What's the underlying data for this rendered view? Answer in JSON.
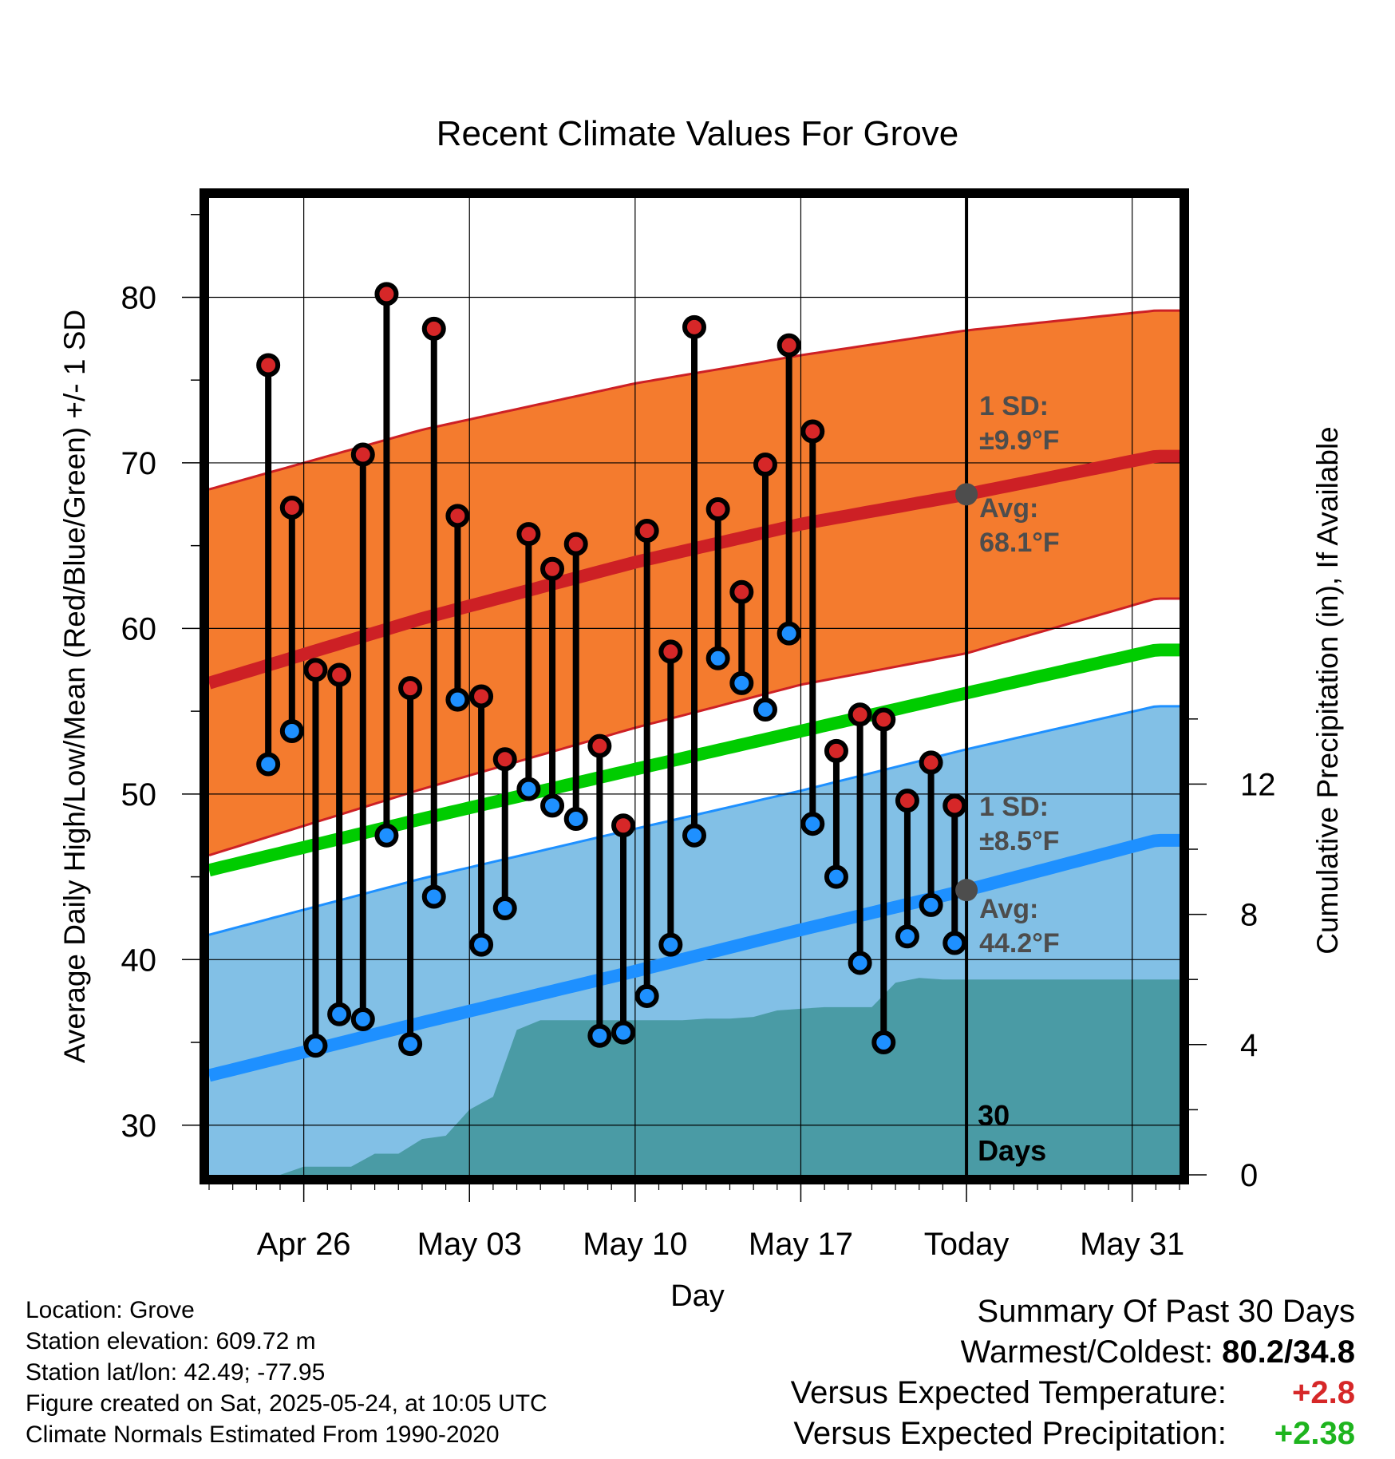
{
  "chart_data": {
    "type": "line",
    "title": "Recent Climate Values For Grove",
    "xlabel": "Day",
    "ylabel": "Average Daily High/Low/Mean (Red/Blue/Green) +/- 1 SD",
    "y2label": "Cumulative Precipitation (in), If Available",
    "ylim": [
      27,
      86
    ],
    "y2lim": [
      0,
      30
    ],
    "xlim": [
      "2025-04-22",
      "2025-06-02"
    ],
    "yticks": [
      30,
      40,
      50,
      60,
      70,
      80
    ],
    "y2ticks": [
      0,
      4,
      8,
      12
    ],
    "xticks": [
      {
        "date": "2025-04-26",
        "label": "Apr 26"
      },
      {
        "date": "2025-05-03",
        "label": "May 03"
      },
      {
        "date": "2025-05-10",
        "label": "May 10"
      },
      {
        "date": "2025-05-17",
        "label": "May 17"
      },
      {
        "date": "2025-05-24",
        "label": "Today"
      },
      {
        "date": "2025-05-31",
        "label": "May 31"
      }
    ],
    "today": "2025-05-24",
    "today_label": [
      "30",
      "Days"
    ],
    "grid": true,
    "normals": {
      "dates": [
        "2025-04-22",
        "2025-05-01",
        "2025-05-10",
        "2025-05-17",
        "2025-05-24",
        "2025-06-01"
      ],
      "high_avg": [
        56.7,
        60.6,
        64.0,
        66.3,
        68.1,
        70.4
      ],
      "high_sd_upper": [
        68.4,
        72.0,
        74.8,
        76.5,
        78.0,
        79.2
      ],
      "high_sd_lower": [
        46.3,
        50.3,
        54.0,
        56.6,
        58.5,
        61.8
      ],
      "mean_avg": [
        45.4,
        48.5,
        51.5,
        53.8,
        56.1,
        58.7
      ],
      "low_avg": [
        33.0,
        36.2,
        39.3,
        41.8,
        44.2,
        47.2
      ],
      "low_sd_upper": [
        41.5,
        44.9,
        47.9,
        50.2,
        52.7,
        55.3
      ],
      "low_sd_lower": [
        27,
        27,
        27,
        27,
        27,
        27
      ]
    },
    "series": [
      {
        "name": "High",
        "color": "#d62728",
        "x": [
          "2025-04-24",
          "2025-04-25",
          "2025-04-26",
          "2025-04-27",
          "2025-04-28",
          "2025-04-29",
          "2025-04-30",
          "2025-05-01",
          "2025-05-02",
          "2025-05-03",
          "2025-05-04",
          "2025-05-05",
          "2025-05-06",
          "2025-05-07",
          "2025-05-08",
          "2025-05-09",
          "2025-05-10",
          "2025-05-11",
          "2025-05-12",
          "2025-05-13",
          "2025-05-14",
          "2025-05-15",
          "2025-05-16",
          "2025-05-17",
          "2025-05-18",
          "2025-05-19",
          "2025-05-20",
          "2025-05-21",
          "2025-05-22",
          "2025-05-23"
        ],
        "values": [
          75.9,
          67.3,
          57.5,
          57.2,
          70.5,
          80.2,
          56.4,
          78.1,
          66.8,
          55.9,
          52.1,
          65.7,
          63.6,
          65.1,
          52.9,
          48.1,
          65.9,
          58.6,
          78.2,
          67.2,
          62.2,
          69.9,
          77.1,
          71.9,
          52.6,
          54.8,
          54.5,
          49.6,
          51.9,
          49.3
        ]
      },
      {
        "name": "Low",
        "color": "#1e90ff",
        "x": [
          "2025-04-24",
          "2025-04-25",
          "2025-04-26",
          "2025-04-27",
          "2025-04-28",
          "2025-04-29",
          "2025-04-30",
          "2025-05-01",
          "2025-05-02",
          "2025-05-03",
          "2025-05-04",
          "2025-05-05",
          "2025-05-06",
          "2025-05-07",
          "2025-05-08",
          "2025-05-09",
          "2025-05-10",
          "2025-05-11",
          "2025-05-12",
          "2025-05-13",
          "2025-05-14",
          "2025-05-15",
          "2025-05-16",
          "2025-05-17",
          "2025-05-18",
          "2025-05-19",
          "2025-05-20",
          "2025-05-21",
          "2025-05-22",
          "2025-05-23"
        ],
        "values": [
          51.8,
          53.8,
          34.8,
          36.7,
          36.4,
          47.5,
          34.9,
          43.8,
          55.7,
          40.9,
          43.1,
          50.3,
          49.3,
          48.5,
          35.4,
          35.6,
          37.8,
          40.9,
          47.5,
          58.2,
          56.7,
          55.1,
          59.7,
          48.2,
          45.0,
          39.8,
          35.0,
          41.4,
          43.3,
          41.0
        ]
      },
      {
        "name": "Cumulative Precipitation",
        "color": "#4a9ba5",
        "x": [
          "2025-04-22",
          "2025-04-23",
          "2025-04-24",
          "2025-04-25",
          "2025-04-26",
          "2025-04-27",
          "2025-04-28",
          "2025-04-29",
          "2025-04-30",
          "2025-05-01",
          "2025-05-02",
          "2025-05-03",
          "2025-05-04",
          "2025-05-05",
          "2025-05-06",
          "2025-05-07",
          "2025-05-08",
          "2025-05-09",
          "2025-05-10",
          "2025-05-11",
          "2025-05-12",
          "2025-05-13",
          "2025-05-14",
          "2025-05-15",
          "2025-05-16",
          "2025-05-17",
          "2025-05-18",
          "2025-05-19",
          "2025-05-20",
          "2025-05-21",
          "2025-05-22",
          "2025-05-23",
          "2025-05-24",
          "2025-06-02"
        ],
        "values": [
          0.0,
          0.0,
          0.0,
          0.0,
          0.25,
          0.25,
          0.25,
          0.65,
          0.65,
          1.1,
          1.2,
          2.0,
          2.4,
          4.45,
          4.75,
          4.75,
          4.75,
          4.75,
          4.75,
          4.75,
          4.75,
          4.8,
          4.8,
          4.85,
          5.05,
          5.1,
          5.15,
          5.15,
          5.15,
          5.9,
          6.05,
          6.0,
          6.0,
          6.0
        ]
      }
    ],
    "annotations": {
      "high": {
        "sd_label": "1 SD:",
        "sd_value": "±9.9°F",
        "avg_label": "Avg:",
        "avg_value": "68.1°F"
      },
      "low": {
        "sd_label": "1 SD:",
        "sd_value": "±8.5°F",
        "avg_label": "Avg:",
        "avg_value": "44.2°F"
      }
    },
    "colors": {
      "high_band": "#f47b2e",
      "high_line": "#cd2025",
      "mean_line": "#00cc00",
      "low_band": "#82c0e6",
      "low_line": "#1e90ff",
      "precip": "#4a9ba5",
      "annotation": "#4d4d4d"
    }
  },
  "info": {
    "location": "Location: Grove",
    "elevation": "Station elevation: 609.72 m",
    "latlon": "Station lat/lon: 42.49; -77.95",
    "created": "Figure created on Sat, 2025-05-24, at 10:05 UTC",
    "normals": "Climate Normals Estimated From 1990-2020"
  },
  "summary": {
    "title": "Summary Of Past 30 Days",
    "warm_cold_label": "Warmest/Coldest:",
    "warm_cold_value": "80.2/34.8",
    "temp_label": "Versus Expected Temperature:",
    "temp_value": "+2.8",
    "precip_label": "Versus Expected Precipitation:",
    "precip_value": "+2.38"
  }
}
